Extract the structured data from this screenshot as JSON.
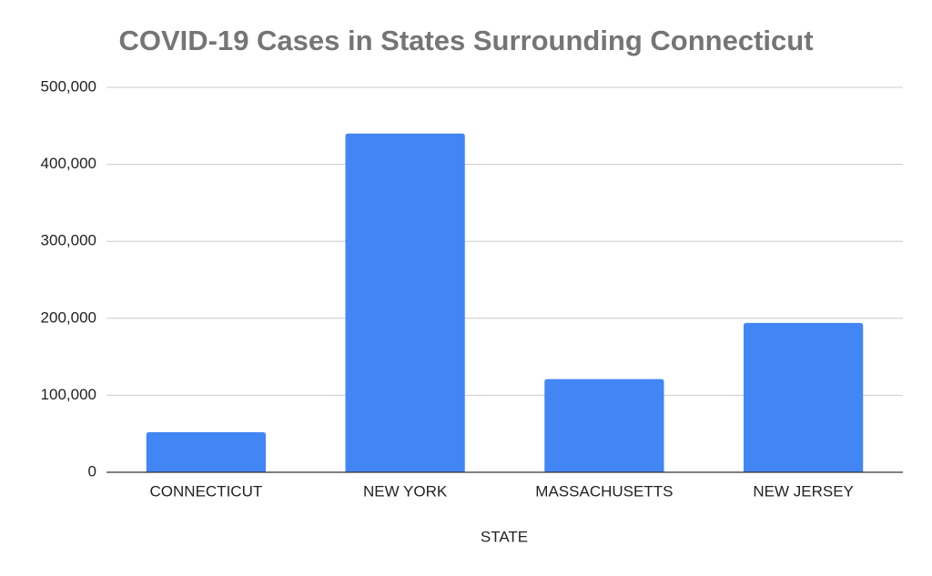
{
  "chart_data": {
    "type": "bar",
    "title": "COVID-19 Cases in States Surrounding Connecticut",
    "x_label": "STATE",
    "categories": [
      "CONNECTICUT",
      "NEW YORK",
      "MASSACHUSETTS",
      "NEW JERSEY"
    ],
    "values": [
      52000,
      440000,
      121000,
      194000
    ],
    "color": "#4285f4",
    "ylim": [
      0,
      500000
    ],
    "yticks": [
      0,
      {
        "value": 100000,
        "label": "100,000"
      },
      {
        "value": 200000,
        "label": "200,000"
      },
      {
        "value": 300000,
        "label": "300,000"
      },
      {
        "value": 400000,
        "label": "400,000"
      },
      {
        "value": 500000,
        "label": "500,000"
      }
    ],
    "grid": true
  }
}
